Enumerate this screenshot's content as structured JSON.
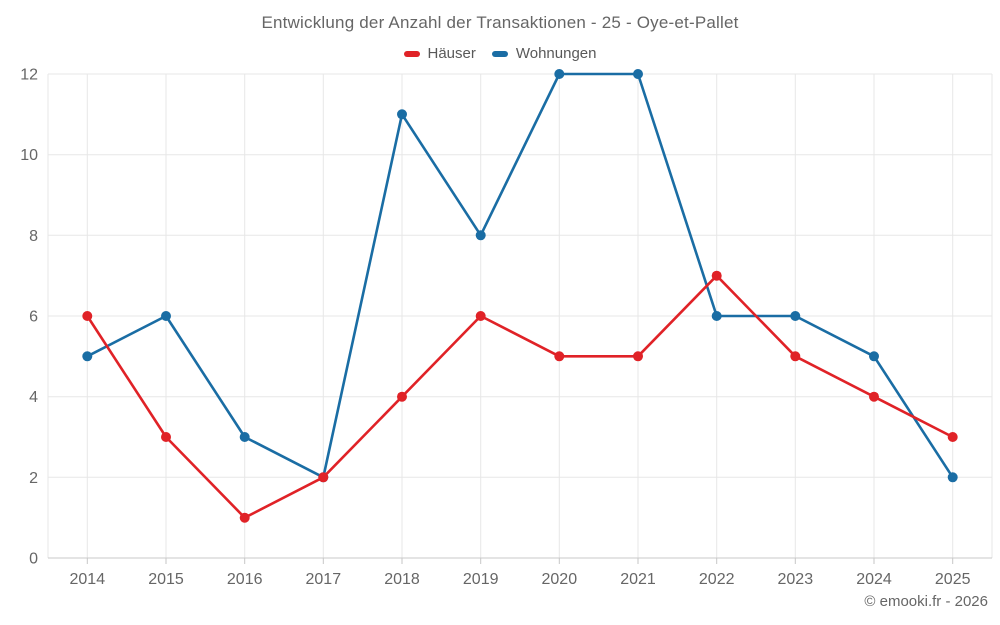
{
  "title": "Entwicklung der Anzahl der Transaktionen - 25 - Oye-et-Pallet",
  "credits": "© emooki.fr - 2026",
  "colors": {
    "hauser_red": "#e02227",
    "wohnungen_blue": "#1a6da4",
    "grid": "#e7e7e7",
    "axis_line": "#c9c9c9",
    "tick": "#c6c6c6",
    "text": "#666666"
  },
  "chart_data": {
    "type": "line",
    "title": "Entwicklung der Anzahl der Transaktionen - 25 - Oye-et-Pallet",
    "categories": [
      "2014",
      "2015",
      "2016",
      "2017",
      "2018",
      "2019",
      "2020",
      "2021",
      "2022",
      "2023",
      "2024",
      "2025"
    ],
    "series": [
      {
        "name": "Häuser",
        "color": "#e02227",
        "values": [
          6,
          3,
          1,
          2,
          4,
          6,
          5,
          5,
          7,
          5,
          4,
          3
        ]
      },
      {
        "name": "Wohnungen",
        "color": "#1a6da4",
        "values": [
          5,
          6,
          3,
          2,
          11,
          8,
          12,
          12,
          6,
          6,
          5,
          2
        ]
      }
    ],
    "xlabel": "",
    "ylabel": "",
    "ylim": [
      0,
      12
    ],
    "y_ticks": [
      0,
      2,
      4,
      6,
      8,
      10,
      12
    ],
    "grid": true,
    "legend_position": "top",
    "marker": "circle"
  }
}
